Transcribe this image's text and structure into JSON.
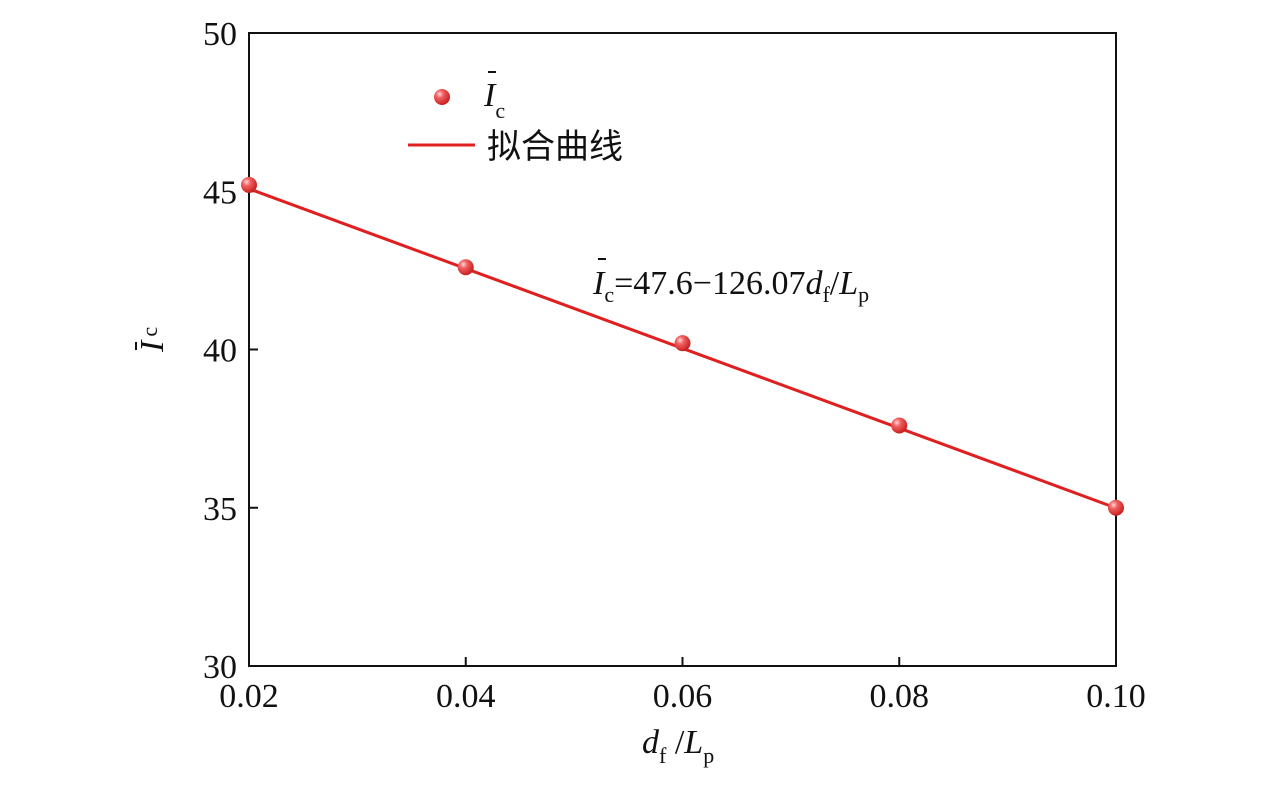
{
  "chart_data": {
    "type": "scatter",
    "x": [
      0.02,
      0.04,
      0.06,
      0.08,
      0.1
    ],
    "series": [
      {
        "name_var": "I",
        "name_sub": "c",
        "values": [
          45.2,
          42.6,
          40.2,
          37.6,
          35.0
        ],
        "color": "#e03030"
      }
    ],
    "fit_line": {
      "name": "拟合曲线",
      "intercept": 47.6,
      "slope": -126.07,
      "color": "#e02020"
    },
    "equation": {
      "var": "I",
      "sub": "c",
      "body": "=47.6−126.07",
      "term_var": "d",
      "term_sub": "f",
      "slash": "/",
      "den_var": "L",
      "den_sub": "p"
    },
    "xlabel": {
      "var": "d",
      "sub": "f",
      "slash": " /",
      "den_var": "L",
      "den_sub": "p"
    },
    "ylabel": {
      "var": "I",
      "sub": "c"
    },
    "xlim": [
      0.02,
      0.1
    ],
    "ylim": [
      30,
      50
    ],
    "xticks": [
      0.02,
      0.04,
      0.06,
      0.08,
      0.1
    ],
    "xtick_labels": [
      "0.02",
      "0.04",
      "0.06",
      "0.08",
      "0.10"
    ],
    "yticks": [
      30,
      35,
      40,
      45,
      50
    ],
    "ytick_labels": [
      "30",
      "35",
      "40",
      "45",
      "50"
    ],
    "grid": false,
    "legend_position": "top-left"
  }
}
